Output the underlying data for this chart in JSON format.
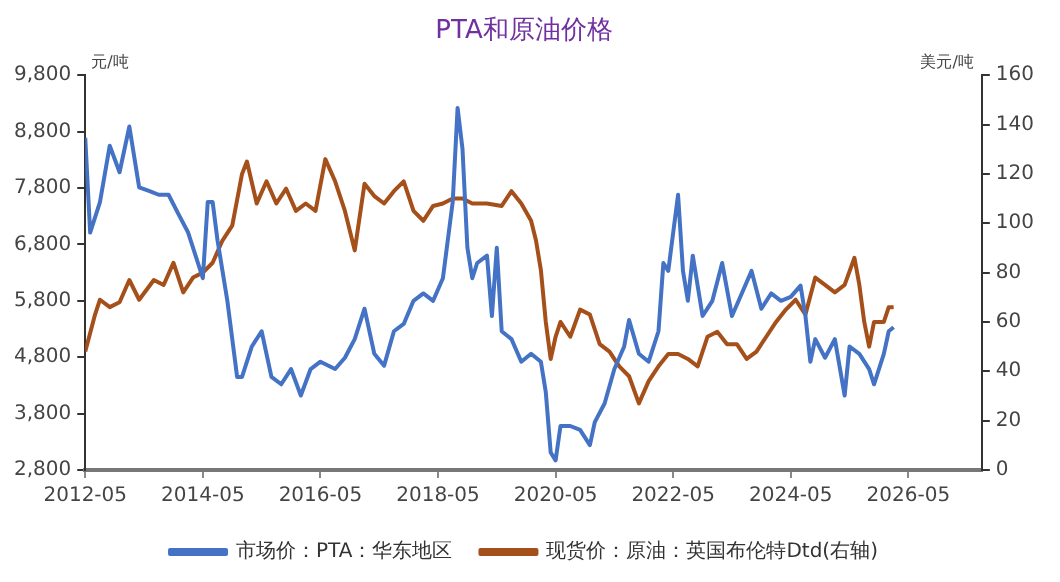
{
  "chart_data": {
    "type": "line",
    "title": "PTA和原油价格",
    "ylabel": "元/吨",
    "y2label": "美元/吨",
    "legend": "bottom",
    "grid": false,
    "marker": "none",
    "line_style": "solid",
    "xlim": [
      "2012-05",
      "2027-08"
    ],
    "xticks": [
      "2012-05",
      "2014-05",
      "2016-05",
      "2018-05",
      "2020-05",
      "2022-05",
      "2024-05",
      "2026-05"
    ],
    "ylim": [
      2800,
      9800
    ],
    "yticks": [
      {
        "value": 2800,
        "label": "2,800"
      },
      {
        "value": 3800,
        "label": "3,800"
      },
      {
        "value": 4800,
        "label": "4,800"
      },
      {
        "value": 5800,
        "label": "5,800"
      },
      {
        "value": 6800,
        "label": "6,800"
      },
      {
        "value": 7800,
        "label": "7,800"
      },
      {
        "value": 8800,
        "label": "8,800"
      },
      {
        "value": 9800,
        "label": "9,800"
      }
    ],
    "y2lim": [
      0,
      160
    ],
    "y2ticks": [
      0,
      20,
      40,
      60,
      80,
      100,
      120,
      140,
      160
    ],
    "series": [
      {
        "name": "市场价：PTA：华东地区",
        "color": "#4472c4",
        "x": [
          "2012-05",
          "2012-06",
          "2012-08",
          "2012-10",
          "2012-12",
          "2013-02",
          "2013-04",
          "2013-06",
          "2013-08",
          "2013-10",
          "2013-12",
          "2014-02",
          "2014-04",
          "2014-05",
          "2014-06",
          "2014-07",
          "2014-08",
          "2014-10",
          "2014-12",
          "2015-01",
          "2015-03",
          "2015-05",
          "2015-07",
          "2015-09",
          "2015-11",
          "2016-01",
          "2016-03",
          "2016-05",
          "2016-08",
          "2016-10",
          "2016-12",
          "2017-02",
          "2017-04",
          "2017-06",
          "2017-08",
          "2017-10",
          "2017-12",
          "2018-02",
          "2018-04",
          "2018-06",
          "2018-08",
          "2018-09",
          "2018-10",
          "2018-11",
          "2018-12",
          "2019-01",
          "2019-03",
          "2019-04",
          "2019-05",
          "2019-06",
          "2019-08",
          "2019-10",
          "2019-12",
          "2020-02",
          "2020-03",
          "2020-04",
          "2020-05",
          "2020-06",
          "2020-08",
          "2020-10",
          "2020-12",
          "2021-01",
          "2021-03",
          "2021-05",
          "2021-07",
          "2021-08",
          "2021-10",
          "2021-12",
          "2022-02",
          "2022-03",
          "2022-04",
          "2022-06",
          "2022-07",
          "2022-08",
          "2022-09",
          "2022-11",
          "2023-01",
          "2023-03",
          "2023-05",
          "2023-07",
          "2023-09",
          "2023-11",
          "2024-01",
          "2024-03",
          "2024-05",
          "2024-07",
          "2024-08",
          "2024-09",
          "2024-10",
          "2024-12",
          "2025-02",
          "2025-04",
          "2025-05",
          "2025-07",
          "2025-09",
          "2025-10",
          "2025-12",
          "2026-01",
          "2026-02"
        ],
        "values": [
          8690,
          7010,
          7550,
          8550,
          8080,
          8890,
          7810,
          7750,
          7680,
          7680,
          7340,
          7010,
          6470,
          6200,
          7550,
          7550,
          6870,
          5800,
          4450,
          4450,
          4990,
          5260,
          4450,
          4320,
          4590,
          4120,
          4590,
          4720,
          4590,
          4790,
          5120,
          5660,
          4860,
          4650,
          5260,
          5390,
          5800,
          5930,
          5800,
          6200,
          7550,
          9220,
          8490,
          6740,
          6200,
          6470,
          6600,
          5530,
          6740,
          5260,
          5120,
          4720,
          4860,
          4720,
          4180,
          3110,
          2970,
          3580,
          3580,
          3510,
          3240,
          3650,
          3980,
          4590,
          4990,
          5460,
          4860,
          4720,
          5260,
          6470,
          6330,
          7680,
          6330,
          5800,
          6600,
          5530,
          5800,
          6470,
          5530,
          5930,
          6330,
          5660,
          5930,
          5800,
          5870,
          6070,
          5530,
          4720,
          5120,
          4790,
          5120,
          4120,
          4990,
          4860,
          4590,
          4320,
          4860,
          5260,
          5330
        ]
      },
      {
        "name": "现货价：原油：英国布伦特Dtd(右轴)",
        "color": "#a5501a",
        "axis": "y2",
        "x": [
          "2012-05",
          "2012-07",
          "2012-08",
          "2012-10",
          "2012-12",
          "2013-02",
          "2013-04",
          "2013-07",
          "2013-09",
          "2013-11",
          "2014-01",
          "2014-03",
          "2014-05",
          "2014-07",
          "2014-09",
          "2014-11",
          "2015-01",
          "2015-02",
          "2015-04",
          "2015-06",
          "2015-08",
          "2015-10",
          "2015-12",
          "2016-02",
          "2016-04",
          "2016-06",
          "2016-08",
          "2016-10",
          "2016-12",
          "2017-02",
          "2017-04",
          "2017-06",
          "2017-08",
          "2017-10",
          "2017-12",
          "2018-02",
          "2018-04",
          "2018-06",
          "2018-08",
          "2018-10",
          "2018-12",
          "2019-03",
          "2019-06",
          "2019-08",
          "2019-10",
          "2019-12",
          "2020-01",
          "2020-02",
          "2020-03",
          "2020-04",
          "2020-05",
          "2020-06",
          "2020-08",
          "2020-10",
          "2020-12",
          "2021-02",
          "2021-04",
          "2021-06",
          "2021-08",
          "2021-10",
          "2021-12",
          "2022-02",
          "2022-04",
          "2022-06",
          "2022-08",
          "2022-10",
          "2022-12",
          "2023-02",
          "2023-04",
          "2023-06",
          "2023-08",
          "2023-10",
          "2023-12",
          "2024-02",
          "2024-04",
          "2024-06",
          "2024-08",
          "2024-10",
          "2024-12",
          "2025-02",
          "2025-04",
          "2025-06",
          "2025-07",
          "2025-08",
          "2025-09",
          "2025-10",
          "2025-12",
          "2026-01",
          "2026-02"
        ],
        "values": [
          48,
          63,
          69,
          66,
          68,
          77,
          69,
          77,
          75,
          84,
          72,
          78,
          80,
          84,
          93,
          99,
          120,
          125,
          108,
          117,
          108,
          114,
          105,
          108,
          105,
          126,
          117,
          105,
          89,
          116,
          111,
          108,
          113,
          117,
          105,
          101,
          107,
          108,
          110,
          110,
          108,
          108,
          107,
          113,
          108,
          101,
          93,
          81,
          60,
          45,
          54,
          60,
          54,
          65,
          63,
          51,
          48,
          42,
          38,
          27,
          36,
          42,
          47,
          47,
          45,
          42,
          54,
          56,
          51,
          51,
          45,
          48,
          54,
          60,
          65,
          69,
          63,
          78,
          75,
          72,
          75,
          86,
          75,
          60,
          50,
          60,
          60,
          66,
          66
        ]
      }
    ]
  }
}
